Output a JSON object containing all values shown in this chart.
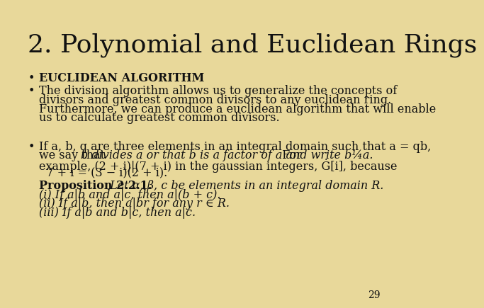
{
  "title": "2. Polynomial and Euclidean Rings",
  "background_color": "#e8d89a",
  "text_color": "#111111",
  "page_number": "29",
  "title_fontsize": 26,
  "body_fontsize": 11.5,
  "bullet_fontsize": 11.5
}
